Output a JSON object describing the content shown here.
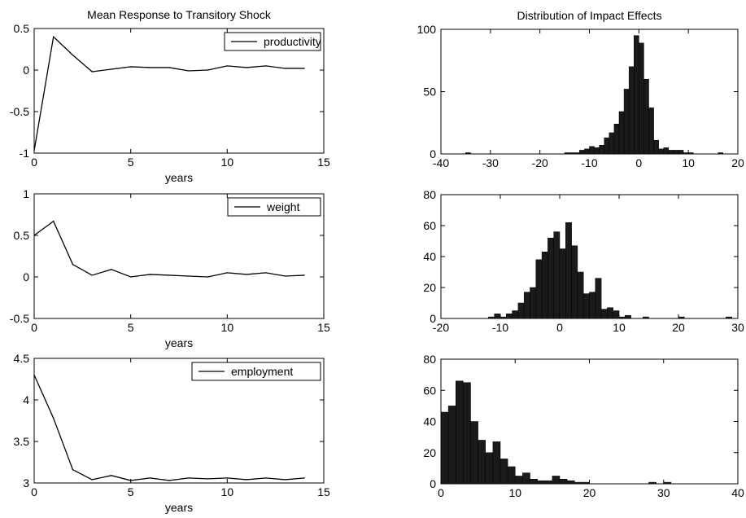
{
  "chart_data": [
    {
      "type": "line",
      "title": "Mean Response to Transitory Shock",
      "xlabel": "years",
      "ylabel": "",
      "xlim": [
        0,
        15
      ],
      "ylim": [
        -1,
        0.5
      ],
      "xticks": [
        "0",
        "5",
        "10",
        "15"
      ],
      "yticks": [
        "-1",
        "-0.5",
        "0",
        "0.5"
      ],
      "legend_position": "top-right",
      "series": [
        {
          "name": "productivity",
          "x": [
            0,
            1,
            2,
            3,
            4,
            5,
            6,
            7,
            8,
            9,
            10,
            11,
            12,
            13,
            14
          ],
          "values": [
            -0.97,
            0.4,
            0.18,
            -0.02,
            0.01,
            0.04,
            0.03,
            0.03,
            -0.01,
            0.0,
            0.05,
            0.03,
            0.05,
            0.02,
            0.02
          ]
        }
      ]
    },
    {
      "type": "bar",
      "title": "Distribution of Impact Effects",
      "xlabel": "",
      "ylabel": "",
      "xlim": [
        -40,
        20
      ],
      "ylim": [
        0,
        100
      ],
      "xticks": [
        "-40",
        "-30",
        "-20",
        "-10",
        "0",
        "10",
        "20"
      ],
      "yticks": [
        "0",
        "50",
        "100"
      ],
      "bin_width": 1,
      "bin_starts": [
        -35,
        -15,
        -14,
        -13,
        -12,
        -11,
        -10,
        -9,
        -8,
        -7,
        -6,
        -5,
        -4,
        -3,
        -2,
        -1,
        0,
        1,
        2,
        3,
        4,
        5,
        6,
        7,
        8,
        9,
        10,
        16
      ],
      "values": [
        1,
        1,
        1,
        1,
        3,
        4,
        6,
        5,
        7,
        13,
        17,
        24,
        34,
        52,
        70,
        95,
        89,
        60,
        37,
        11,
        4,
        5,
        3,
        3,
        3,
        1,
        1,
        1
      ]
    },
    {
      "type": "line",
      "title": "",
      "xlabel": "years",
      "ylabel": "",
      "xlim": [
        0,
        15
      ],
      "ylim": [
        -0.5,
        1
      ],
      "xticks": [
        "0",
        "5",
        "10",
        "15"
      ],
      "yticks": [
        "-0.5",
        "0",
        "0.5",
        "1"
      ],
      "legend_position": "top-right",
      "series": [
        {
          "name": "weight",
          "x": [
            0,
            1,
            2,
            3,
            4,
            5,
            6,
            7,
            8,
            9,
            10,
            11,
            12,
            13,
            14
          ],
          "values": [
            0.5,
            0.67,
            0.15,
            0.02,
            0.09,
            0.0,
            0.03,
            0.02,
            0.01,
            0.0,
            0.05,
            0.03,
            0.05,
            0.01,
            0.02
          ]
        }
      ]
    },
    {
      "type": "bar",
      "title": "",
      "xlabel": "",
      "ylabel": "",
      "xlim": [
        -20,
        30
      ],
      "ylim": [
        0,
        80
      ],
      "xticks": [
        "-20",
        "-10",
        "0",
        "10",
        "20",
        "30"
      ],
      "yticks": [
        "0",
        "20",
        "40",
        "60",
        "80"
      ],
      "bin_width": 1,
      "bin_starts": [
        -12,
        -11,
        -10,
        -9,
        -8,
        -7,
        -6,
        -5,
        -4,
        -3,
        -2,
        -1,
        0,
        1,
        2,
        3,
        4,
        5,
        6,
        7,
        8,
        9,
        10,
        11,
        14,
        20,
        28
      ],
      "values": [
        1,
        3,
        1,
        3,
        5,
        10,
        17,
        20,
        38,
        43,
        52,
        56,
        45,
        62,
        47,
        30,
        16,
        17,
        26,
        6,
        7,
        5,
        1,
        2,
        1,
        1,
        1
      ]
    },
    {
      "type": "line",
      "title": "",
      "xlabel": "years",
      "ylabel": "",
      "xlim": [
        0,
        15
      ],
      "ylim": [
        3,
        4.5
      ],
      "xticks": [
        "0",
        "5",
        "10",
        "15"
      ],
      "yticks": [
        "3",
        "3.5",
        "4",
        "4.5"
      ],
      "legend_position": "top-right",
      "series": [
        {
          "name": "employment",
          "x": [
            0,
            1,
            2,
            3,
            4,
            5,
            6,
            7,
            8,
            9,
            10,
            11,
            12,
            13,
            14
          ],
          "values": [
            4.3,
            3.78,
            3.16,
            3.04,
            3.09,
            3.03,
            3.06,
            3.03,
            3.06,
            3.05,
            3.06,
            3.04,
            3.06,
            3.04,
            3.06
          ]
        }
      ]
    },
    {
      "type": "bar",
      "title": "",
      "xlabel": "",
      "ylabel": "",
      "xlim": [
        0,
        40
      ],
      "ylim": [
        0,
        80
      ],
      "xticks": [
        "0",
        "10",
        "20",
        "30",
        "40"
      ],
      "yticks": [
        "0",
        "20",
        "40",
        "60",
        "80"
      ],
      "bin_width": 1,
      "bin_starts": [
        0,
        1,
        2,
        3,
        4,
        5,
        6,
        7,
        8,
        9,
        10,
        11,
        12,
        13,
        14,
        15,
        16,
        17,
        18,
        19,
        28,
        30
      ],
      "values": [
        46,
        50,
        66,
        65,
        40,
        28,
        20,
        27,
        16,
        11,
        5,
        7,
        3,
        2,
        2,
        5,
        3,
        2,
        1,
        1,
        1,
        1
      ]
    }
  ]
}
